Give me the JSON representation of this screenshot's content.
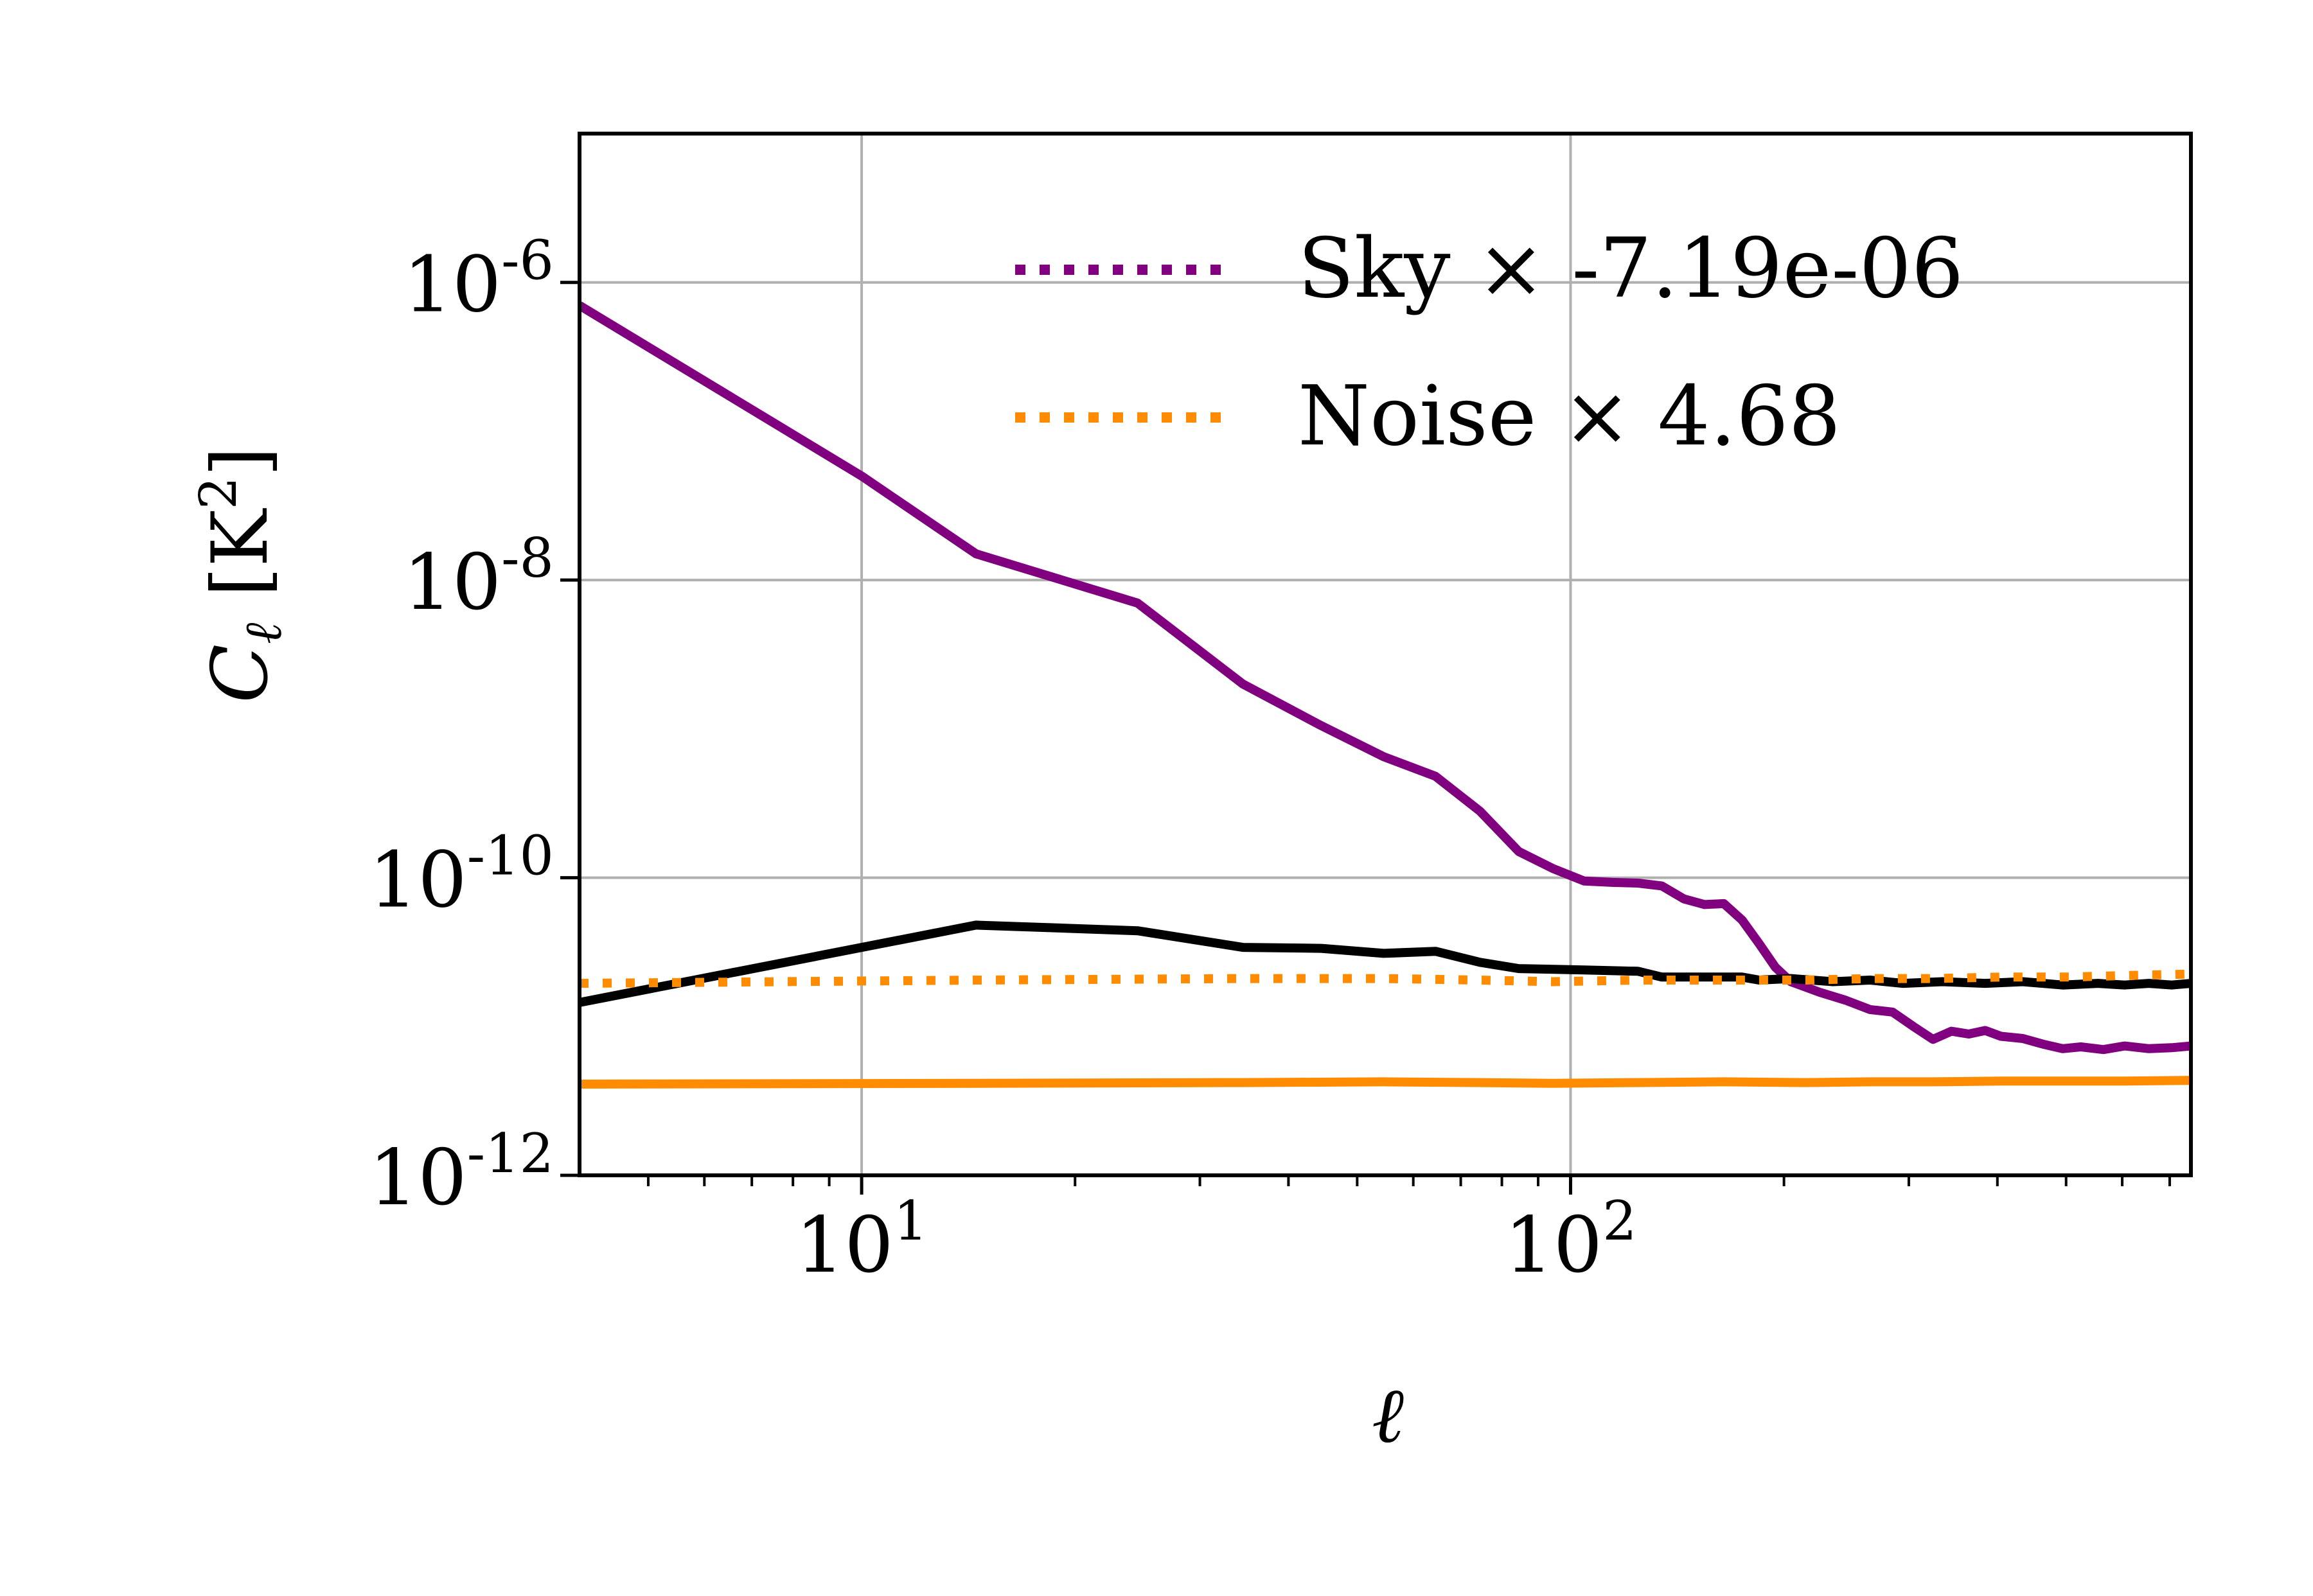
{
  "chart_data": {
    "type": "line",
    "xlabel": "ℓ",
    "ylabel_main": "C",
    "ylabel_sub": "ℓ",
    "ylabel_unit": "[K",
    "ylabel_unit_exp": "2",
    "ylabel_unit_close": "]",
    "x_scale": "log",
    "y_scale": "log",
    "xlim": [
      4,
      750
    ],
    "ylim": [
      1e-12,
      1e-05
    ],
    "grid": true,
    "legend_position": "top-right",
    "x_ticks": [
      {
        "value": 10,
        "base": "10",
        "exp": "1"
      },
      {
        "value": 100,
        "base": "10",
        "exp": "2"
      }
    ],
    "y_ticks": [
      {
        "value": 1e-06,
        "base": "10",
        "exp": "-6"
      },
      {
        "value": 1e-08,
        "base": "10",
        "exp": "-8"
      },
      {
        "value": 1e-10,
        "base": "10",
        "exp": "-10"
      },
      {
        "value": 1e-12,
        "base": "10",
        "exp": "-12"
      }
    ],
    "legend": [
      {
        "label": "Sky × -7.19e-06",
        "color": "#800080",
        "style": "dotted"
      },
      {
        "label": "Noise × 4.68",
        "color": "#ff8c00",
        "style": "dotted"
      }
    ],
    "series": [
      {
        "color": "#800080",
        "style": "solid",
        "x": [
          4,
          10,
          14.5,
          24.5,
          34.5,
          44.5,
          54.5,
          64.5,
          74.5,
          84.5,
          94.5,
          104.5,
          114.5,
          124.5,
          134.5,
          144.5,
          154.5,
          164.5,
          174.5,
          184.5,
          194.5,
          204.5,
          224.5,
          244.5,
          264.5,
          284.5,
          304.5,
          324.5,
          344.5,
          364.5,
          384.5,
          404.5,
          434.5,
          464.5,
          494.5,
          524.5,
          564.5,
          604.5,
          654.5,
          704.5,
          750
        ],
        "y": [
          7e-07,
          5e-08,
          1.5e-08,
          7e-09,
          2e-09,
          1.05e-09,
          6.5e-10,
          4.8e-10,
          2.8e-10,
          1.5e-10,
          1.15e-10,
          9.5e-11,
          9.3e-11,
          9.2e-11,
          8.8e-11,
          7.2e-11,
          6.6e-11,
          6.7e-11,
          5.2e-11,
          3.6e-11,
          2.5e-11,
          2e-11,
          1.7e-11,
          1.5e-11,
          1.3e-11,
          1.25e-11,
          1e-11,
          8.2e-12,
          9.3e-12,
          8.9e-12,
          9.4e-12,
          8.6e-12,
          8.3e-12,
          7.6e-12,
          7.1e-12,
          7.3e-12,
          7e-12,
          7.4e-12,
          7.1e-12,
          7.2e-12,
          7.4e-12
        ]
      },
      {
        "color": "#000000",
        "style": "solid",
        "x": [
          4,
          14.5,
          24.5,
          34.5,
          44.5,
          54.5,
          64.5,
          74.5,
          84.5,
          104.5,
          124.5,
          134.5,
          174.5,
          184.5,
          204.5,
          234.5,
          264.5,
          294.5,
          334.5,
          384.5,
          434.5,
          494.5,
          554.5,
          604.5,
          654.5,
          704.5,
          750
        ],
        "y": [
          1.45e-11,
          4.8e-11,
          4.4e-11,
          3.4e-11,
          3.35e-11,
          3.1e-11,
          3.2e-11,
          2.7e-11,
          2.45e-11,
          2.4e-11,
          2.35e-11,
          2.15e-11,
          2.15e-11,
          2.05e-11,
          2.1e-11,
          2e-11,
          2.05e-11,
          1.95e-11,
          2e-11,
          1.95e-11,
          2e-11,
          1.9e-11,
          1.95e-11,
          1.9e-11,
          1.95e-11,
          1.9e-11,
          1.95e-11
        ]
      },
      {
        "color": "#ff8c00",
        "style": "dotted",
        "x": [
          4,
          14.5,
          34.5,
          54.5,
          74.5,
          94.5,
          124.5,
          164.5,
          214.5,
          264.5,
          324.5,
          404.5,
          504.5,
          604.5,
          750
        ],
        "y": [
          1.95e-11,
          2.05e-11,
          2.1e-11,
          2.1e-11,
          2.05e-11,
          2e-11,
          2.05e-11,
          2.05e-11,
          2.05e-11,
          2.1e-11,
          2.1e-11,
          2.15e-11,
          2.15e-11,
          2.2e-11,
          2.25e-11
        ]
      },
      {
        "color": "#ff8c00",
        "style": "solid",
        "x": [
          4,
          14.5,
          34.5,
          54.5,
          74.5,
          94.5,
          124.5,
          164.5,
          214.5,
          264.5,
          324.5,
          404.5,
          504.5,
          604.5,
          750
        ],
        "y": [
          4.1e-12,
          4.15e-12,
          4.2e-12,
          4.25e-12,
          4.2e-12,
          4.15e-12,
          4.2e-12,
          4.25e-12,
          4.2e-12,
          4.25e-12,
          4.25e-12,
          4.3e-12,
          4.3e-12,
          4.3e-12,
          4.35e-12
        ]
      }
    ]
  }
}
